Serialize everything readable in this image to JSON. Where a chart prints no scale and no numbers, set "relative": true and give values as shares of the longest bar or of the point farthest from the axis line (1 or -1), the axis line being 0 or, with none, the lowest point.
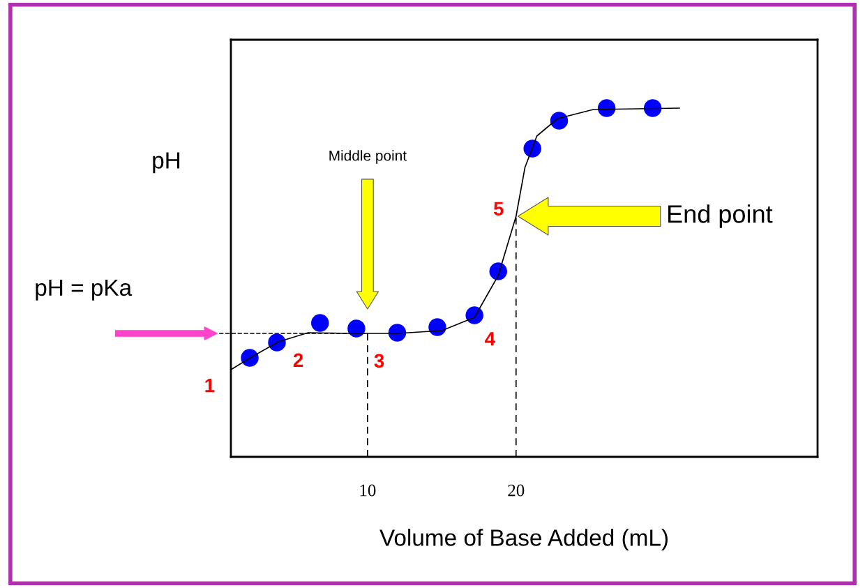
{
  "chart_data": {
    "type": "scatter",
    "relative": true,
    "xlabel": "Volume of Base Added (mL)",
    "ylabel": "pH",
    "xlim": [
      0.8,
      40.3
    ],
    "xticks": [
      10,
      20
    ],
    "grid": false,
    "series": [
      {
        "type": "line",
        "color": "#000000",
        "marker": "none",
        "line_style": "solid",
        "x": [
          0.8,
          2.1,
          4.0,
          6.0,
          9.0,
          12.0,
          15.0,
          17.2,
          18.8,
          20.0,
          20.6,
          21.4,
          22.8,
          25.2,
          31.0
        ],
        "values": [
          0.25,
          0.284,
          0.33,
          0.356,
          0.354,
          0.354,
          0.362,
          0.4,
          0.52,
          0.69,
          0.83,
          0.92,
          0.97,
          0.996,
          1.0
        ]
      },
      {
        "color": "#0000ff",
        "marker": "circle",
        "x": [
          2.07,
          3.9,
          6.8,
          9.25,
          12.0,
          14.7,
          17.2,
          18.8,
          21.1,
          22.9,
          26.1,
          29.2
        ],
        "values": [
          0.284,
          0.328,
          0.384,
          0.368,
          0.356,
          0.372,
          0.406,
          0.532,
          0.884,
          0.964,
          1.0,
          1.0
        ]
      }
    ],
    "ref_lines": [
      {
        "axis": "y",
        "value": 0.354,
        "color": "#000000",
        "line_style": "dashed"
      },
      {
        "axis": "x",
        "value": 10,
        "color": "#000000",
        "line_style": "dashed"
      },
      {
        "axis": "x",
        "value": 20,
        "color": "#000000",
        "line_style": "dashed"
      }
    ],
    "annotations": [
      "pH = pKa",
      "Middle point",
      "End point",
      {
        "text": "1",
        "x": 0.8,
        "y": 0.25
      },
      {
        "text": "2",
        "x": 3.9,
        "y": 0.328
      },
      {
        "text": "3",
        "x": 10,
        "y": 0.354
      },
      {
        "text": "4",
        "x": 17.2,
        "y": 0.406
      },
      {
        "text": "5",
        "x": 20,
        "y": 0.69
      }
    ]
  }
}
